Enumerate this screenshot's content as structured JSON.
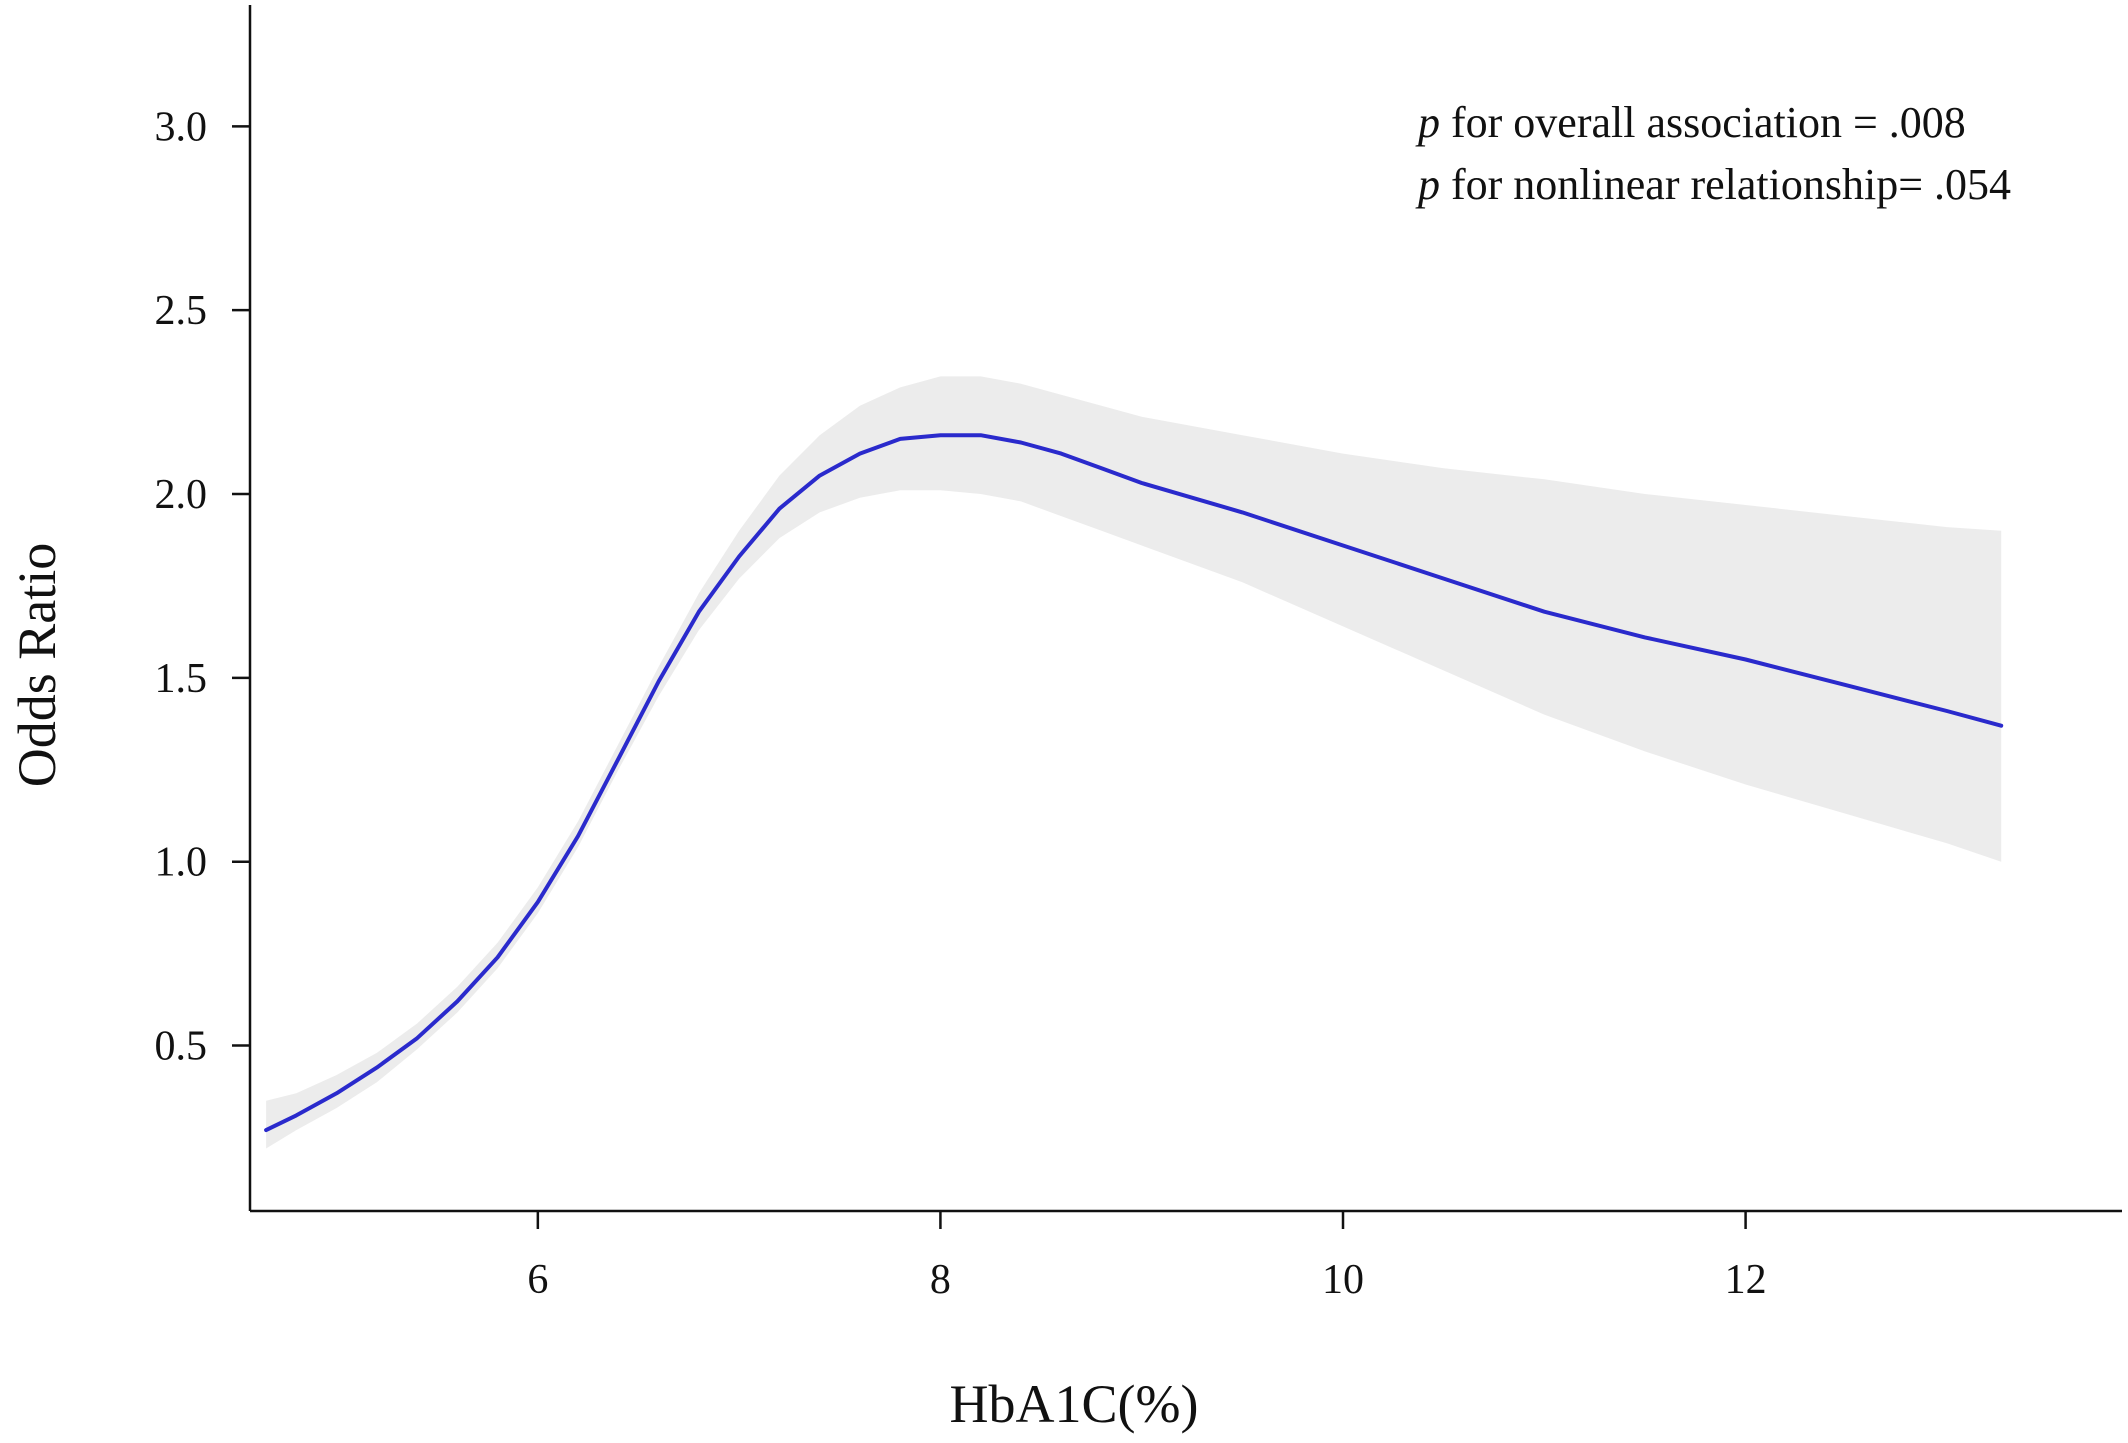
{
  "chart_data": {
    "type": "line",
    "title": "",
    "xlabel": "HbA1C(%)",
    "ylabel": "Odds Ratio",
    "xlim": [
      4.57,
      13.87
    ],
    "ylim": [
      0.05,
      3.33
    ],
    "xticks": [
      6,
      8,
      10,
      12
    ],
    "yticks": [
      0.5,
      1.0,
      1.5,
      2.0,
      2.5,
      3.0
    ],
    "xtick_labels": [
      "6",
      "8",
      "10",
      "12"
    ],
    "ytick_labels": [
      "0.5",
      "1.0",
      "1.5",
      "2.0",
      "2.5",
      "3.0"
    ],
    "grid": false,
    "legend": false,
    "annotations": [
      {
        "prefix": "p",
        "text": " for overall association = .008"
      },
      {
        "prefix": "p",
        "text": " for nonlinear relationship= .054"
      }
    ],
    "series": [
      {
        "color": "#2a2acc",
        "x": [
          4.65,
          4.8,
          5.0,
          5.2,
          5.4,
          5.6,
          5.8,
          6.0,
          6.2,
          6.4,
          6.6,
          6.8,
          7.0,
          7.2,
          7.4,
          7.6,
          7.8,
          8.0,
          8.2,
          8.4,
          8.6,
          8.8,
          9.0,
          9.5,
          10.0,
          10.5,
          11.0,
          11.5,
          12.0,
          12.5,
          13.0,
          13.27
        ],
        "y": [
          0.27,
          0.31,
          0.37,
          0.44,
          0.52,
          0.62,
          0.74,
          0.89,
          1.07,
          1.28,
          1.49,
          1.68,
          1.83,
          1.96,
          2.05,
          2.11,
          2.15,
          2.16,
          2.16,
          2.14,
          2.11,
          2.07,
          2.03,
          1.95,
          1.86,
          1.77,
          1.68,
          1.61,
          1.55,
          1.48,
          1.41,
          1.37
        ],
        "lower": [
          0.22,
          0.27,
          0.33,
          0.4,
          0.49,
          0.59,
          0.71,
          0.86,
          1.04,
          1.25,
          1.45,
          1.63,
          1.77,
          1.88,
          1.95,
          1.99,
          2.01,
          2.01,
          2.0,
          1.98,
          1.94,
          1.9,
          1.86,
          1.76,
          1.64,
          1.52,
          1.4,
          1.3,
          1.21,
          1.13,
          1.05,
          1.0
        ],
        "upper": [
          0.35,
          0.37,
          0.42,
          0.48,
          0.56,
          0.66,
          0.78,
          0.93,
          1.11,
          1.32,
          1.53,
          1.73,
          1.9,
          2.05,
          2.16,
          2.24,
          2.29,
          2.32,
          2.32,
          2.3,
          2.27,
          2.24,
          2.21,
          2.16,
          2.11,
          2.07,
          2.04,
          2.0,
          1.97,
          1.94,
          1.91,
          1.9
        ]
      }
    ]
  }
}
